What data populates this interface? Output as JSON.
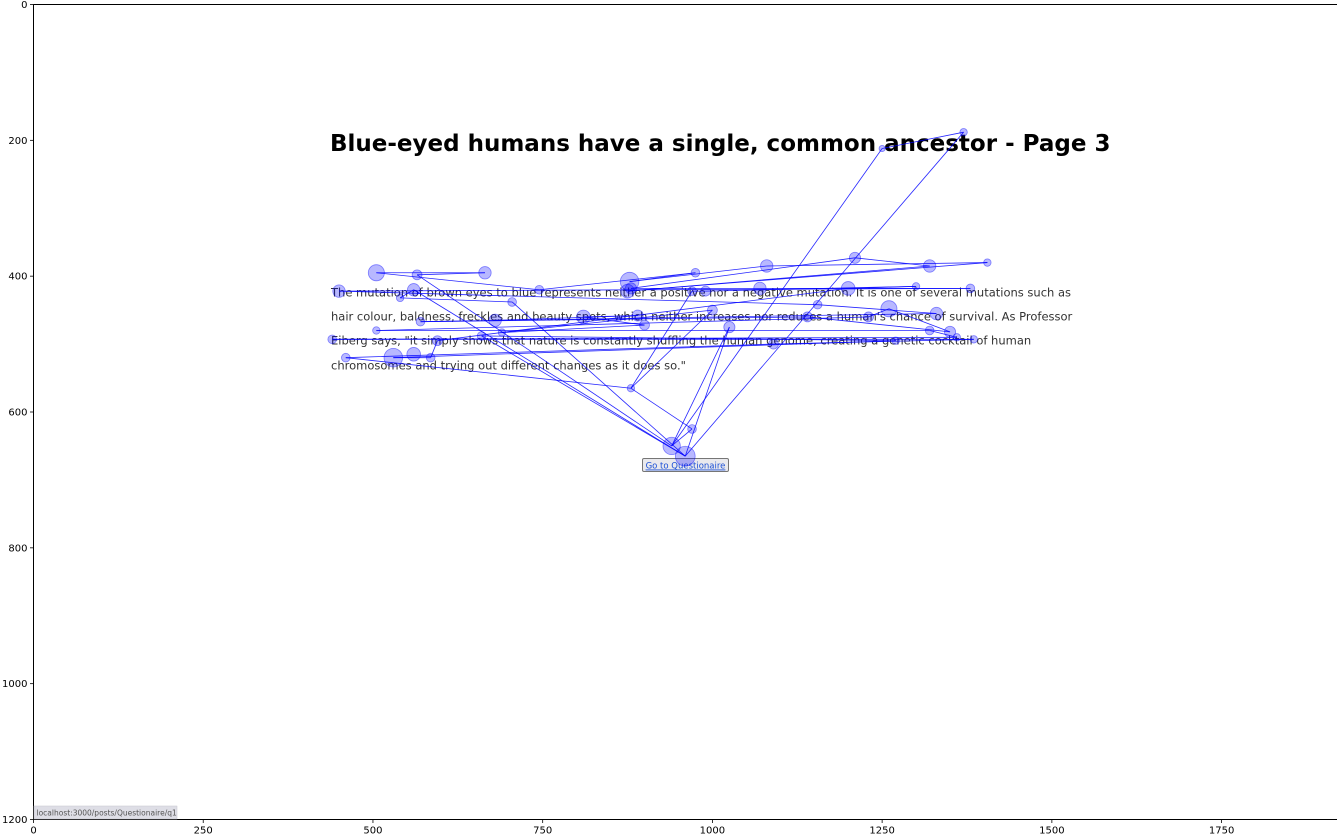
{
  "page": {
    "title": "Blue-eyed humans have a single, common ancestor - Page 3",
    "paragraph_lines": [
      "The mutation of brown eyes to blue represents neither a positive nor a negative mutation. It is one of several mutations such as",
      "hair colour, baldness, freckles and beauty spots, which neither increases nor reduces a human's chance of survival. As Professor",
      "Eiberg says, \"it simply shows that nature is constantly shuffling the human genome, creating a genetic cocktail of human",
      "chromosomes and trying out different changes as it does so.\""
    ],
    "button_label": "Go to Questionaire",
    "status_url": "localhost:3000/posts/Questionaire/q1"
  },
  "colors": {
    "fixation_fill": "#0000ff",
    "scanpath_line": "#0000ff",
    "axis": "#000000",
    "background": "#ffffff"
  },
  "chart_data": {
    "type": "scatter",
    "title": "",
    "xlabel": "",
    "ylabel": "",
    "xlim": [
      0,
      1920
    ],
    "ylim": [
      1200,
      0
    ],
    "x_ticks": [
      0,
      250,
      500,
      750,
      1000,
      1250,
      1500,
      1750
    ],
    "y_ticks": [
      0,
      200,
      400,
      600,
      800,
      1000,
      1200
    ],
    "grid": false,
    "points": [
      {
        "x": 960,
        "y": 665,
        "size": 16
      },
      {
        "x": 940,
        "y": 650,
        "size": 14
      },
      {
        "x": 970,
        "y": 625,
        "size": 7
      },
      {
        "x": 880,
        "y": 565,
        "size": 6
      },
      {
        "x": 530,
        "y": 520,
        "size": 15
      },
      {
        "x": 460,
        "y": 520,
        "size": 7
      },
      {
        "x": 560,
        "y": 515,
        "size": 11
      },
      {
        "x": 585,
        "y": 520,
        "size": 7
      },
      {
        "x": 595,
        "y": 495,
        "size": 8
      },
      {
        "x": 440,
        "y": 493,
        "size": 7
      },
      {
        "x": 505,
        "y": 480,
        "size": 6
      },
      {
        "x": 660,
        "y": 488,
        "size": 7
      },
      {
        "x": 690,
        "y": 483,
        "size": 6
      },
      {
        "x": 570,
        "y": 467,
        "size": 7
      },
      {
        "x": 680,
        "y": 465,
        "size": 10
      },
      {
        "x": 810,
        "y": 460,
        "size": 11
      },
      {
        "x": 890,
        "y": 458,
        "size": 9
      },
      {
        "x": 900,
        "y": 472,
        "size": 8
      },
      {
        "x": 1000,
        "y": 450,
        "size": 8
      },
      {
        "x": 1025,
        "y": 475,
        "size": 9
      },
      {
        "x": 1090,
        "y": 500,
        "size": 8
      },
      {
        "x": 1140,
        "y": 460,
        "size": 8
      },
      {
        "x": 1155,
        "y": 442,
        "size": 7
      },
      {
        "x": 1260,
        "y": 448,
        "size": 13
      },
      {
        "x": 1230,
        "y": 460,
        "size": 8
      },
      {
        "x": 1330,
        "y": 455,
        "size": 10
      },
      {
        "x": 1320,
        "y": 480,
        "size": 7
      },
      {
        "x": 1350,
        "y": 482,
        "size": 9
      },
      {
        "x": 1360,
        "y": 490,
        "size": 6
      },
      {
        "x": 1385,
        "y": 493,
        "size": 6
      },
      {
        "x": 1270,
        "y": 495,
        "size": 6
      },
      {
        "x": 450,
        "y": 422,
        "size": 10
      },
      {
        "x": 505,
        "y": 395,
        "size": 13
      },
      {
        "x": 565,
        "y": 398,
        "size": 8
      },
      {
        "x": 560,
        "y": 420,
        "size": 10
      },
      {
        "x": 540,
        "y": 432,
        "size": 6
      },
      {
        "x": 665,
        "y": 395,
        "size": 10
      },
      {
        "x": 705,
        "y": 438,
        "size": 7
      },
      {
        "x": 745,
        "y": 420,
        "size": 7
      },
      {
        "x": 875,
        "y": 422,
        "size": 11
      },
      {
        "x": 878,
        "y": 408,
        "size": 15
      },
      {
        "x": 880,
        "y": 418,
        "size": 9
      },
      {
        "x": 975,
        "y": 395,
        "size": 7
      },
      {
        "x": 970,
        "y": 422,
        "size": 7
      },
      {
        "x": 990,
        "y": 422,
        "size": 8
      },
      {
        "x": 1070,
        "y": 418,
        "size": 10
      },
      {
        "x": 1080,
        "y": 385,
        "size": 10
      },
      {
        "x": 1200,
        "y": 418,
        "size": 11
      },
      {
        "x": 1210,
        "y": 373,
        "size": 9
      },
      {
        "x": 1300,
        "y": 415,
        "size": 6
      },
      {
        "x": 1320,
        "y": 385,
        "size": 10
      },
      {
        "x": 1380,
        "y": 418,
        "size": 7
      },
      {
        "x": 1405,
        "y": 380,
        "size": 6
      },
      {
        "x": 1250,
        "y": 212,
        "size": 5
      },
      {
        "x": 1370,
        "y": 188,
        "size": 6
      }
    ],
    "scanpath": [
      [
        960,
        665
      ],
      [
        1370,
        188
      ],
      [
        1250,
        212
      ],
      [
        940,
        650
      ],
      [
        970,
        625
      ],
      [
        880,
        565
      ],
      [
        460,
        520
      ],
      [
        1090,
        500
      ],
      [
        1385,
        493
      ],
      [
        440,
        493
      ],
      [
        1360,
        490
      ],
      [
        1320,
        480
      ],
      [
        505,
        480
      ],
      [
        1230,
        460
      ],
      [
        1260,
        448
      ],
      [
        1350,
        482
      ],
      [
        1140,
        460
      ],
      [
        570,
        467
      ],
      [
        1330,
        455
      ],
      [
        1155,
        442
      ],
      [
        450,
        422
      ],
      [
        1380,
        418
      ],
      [
        880,
        418
      ],
      [
        1210,
        373
      ],
      [
        1320,
        385
      ],
      [
        875,
        422
      ],
      [
        1405,
        380
      ],
      [
        1080,
        385
      ],
      [
        878,
        408
      ],
      [
        975,
        395
      ],
      [
        745,
        420
      ],
      [
        505,
        395
      ],
      [
        665,
        395
      ],
      [
        565,
        398
      ],
      [
        940,
        650
      ],
      [
        1025,
        475
      ],
      [
        960,
        665
      ],
      [
        560,
        420
      ],
      [
        540,
        432
      ],
      [
        705,
        438
      ],
      [
        960,
        665
      ],
      [
        660,
        488
      ],
      [
        1270,
        495
      ],
      [
        530,
        520
      ],
      [
        585,
        520
      ],
      [
        595,
        495
      ],
      [
        1200,
        418
      ],
      [
        1300,
        415
      ],
      [
        990,
        422
      ],
      [
        970,
        422
      ],
      [
        880,
        565
      ],
      [
        1000,
        450
      ],
      [
        690,
        483
      ],
      [
        900,
        472
      ],
      [
        810,
        460
      ],
      [
        890,
        458
      ],
      [
        680,
        465
      ]
    ]
  }
}
